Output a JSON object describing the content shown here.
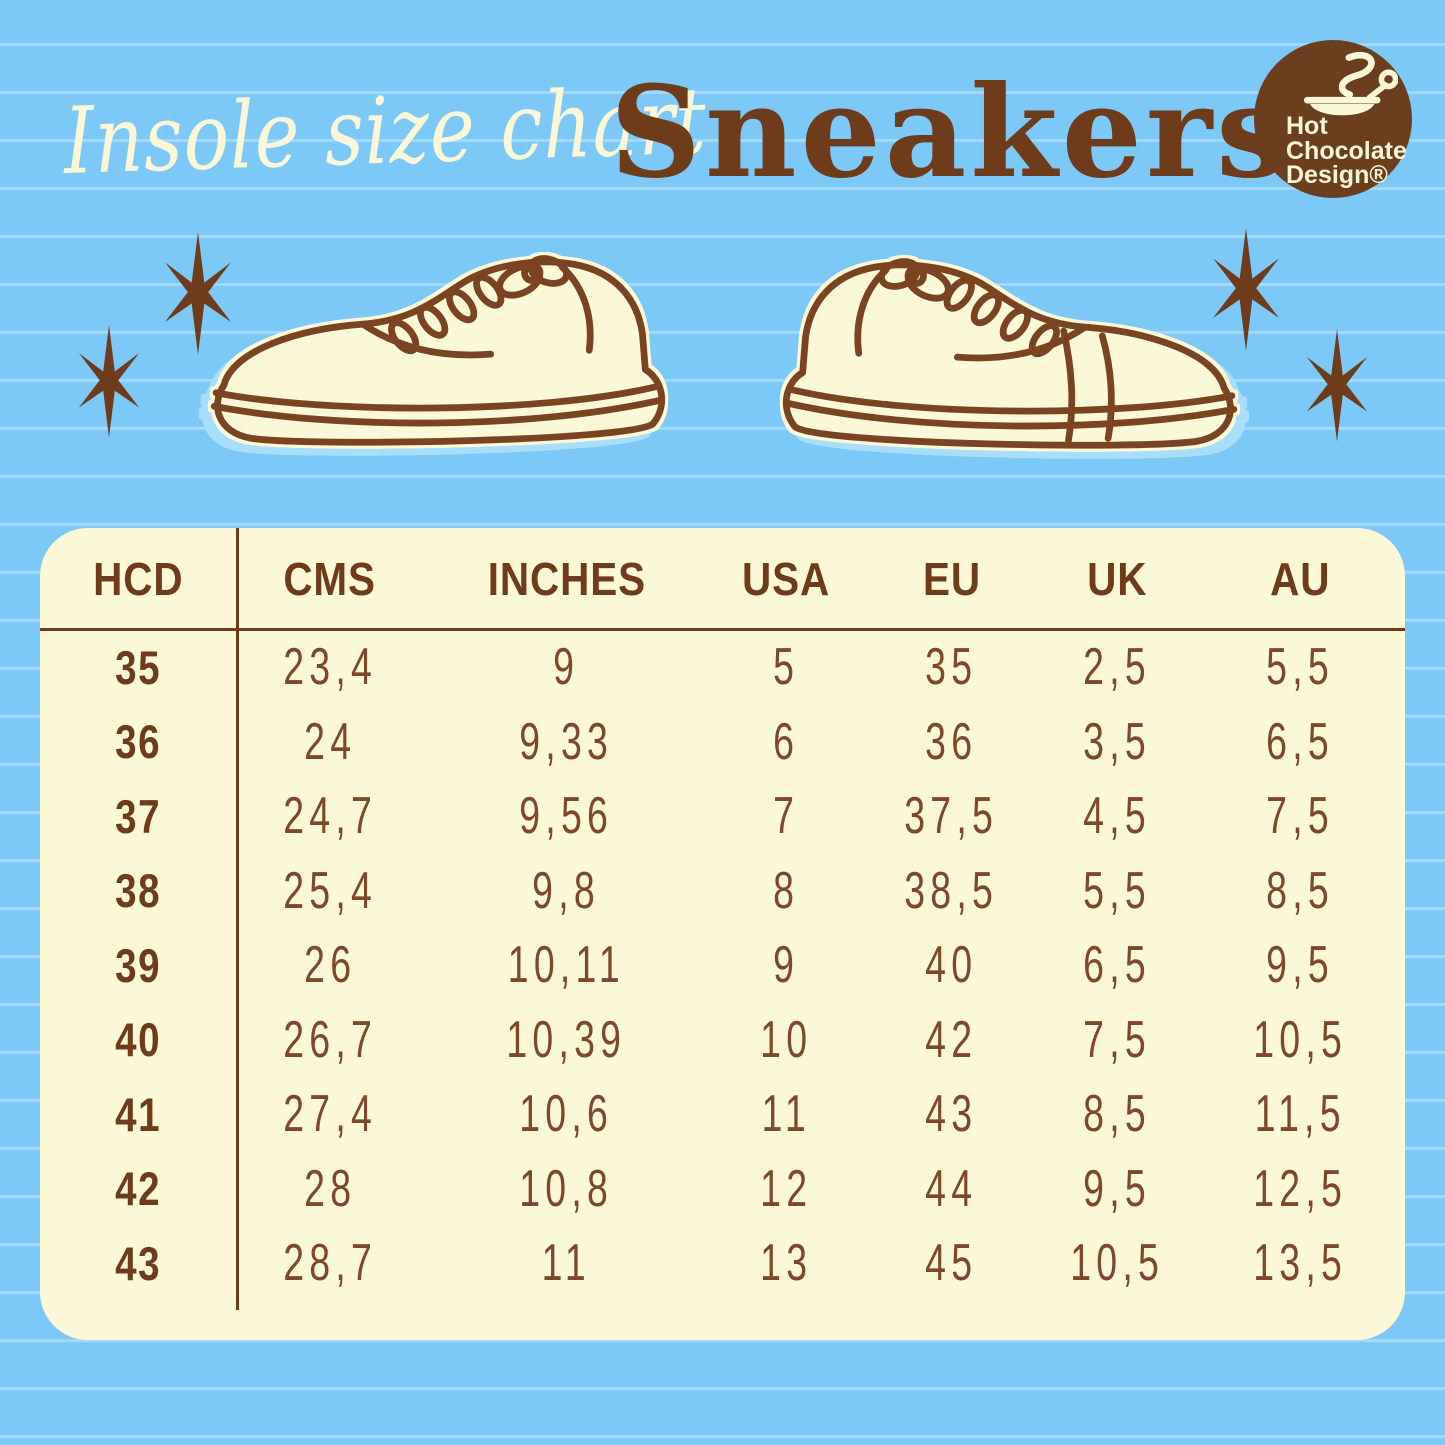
{
  "header": {
    "subtitle_script": "Insole size chart",
    "title": "Sneakers",
    "logo": {
      "line1": "Hot",
      "line2": "Chocolate",
      "line3": "Design®",
      "icon": "coffee-cup-icon",
      "bg_color": "#6b3e1e",
      "text_color": "#faf7d8"
    }
  },
  "decor": {
    "stars": 4,
    "illustrations": [
      "left-sneaker",
      "right-sneaker"
    ]
  },
  "colors": {
    "background_blue": "#7cc8f7",
    "ruled_line_blue": "#a9dff9",
    "cream": "#fbf8d8",
    "brown_dark": "#6e3c1b",
    "brown_data": "#7f482a",
    "shadow_blue": "#a9defb"
  },
  "chart_data": {
    "type": "table",
    "title": "Insole size chart — Sneakers",
    "columns": [
      "HCD",
      "CMS",
      "INCHES",
      "USA",
      "EU",
      "UK",
      "AU"
    ],
    "rows": [
      [
        "35",
        "23,4",
        "9",
        "5",
        "35",
        "2,5",
        "5,5"
      ],
      [
        "36",
        "24",
        "9,33",
        "6",
        "36",
        "3,5",
        "6,5"
      ],
      [
        "37",
        "24,7",
        "9,56",
        "7",
        "37,5",
        "4,5",
        "7,5"
      ],
      [
        "38",
        "25,4",
        "9,8",
        "8",
        "38,5",
        "5,5",
        "8,5"
      ],
      [
        "39",
        "26",
        "10,11",
        "9",
        "40",
        "6,5",
        "9,5"
      ],
      [
        "40",
        "26,7",
        "10,39",
        "10",
        "42",
        "7,5",
        "10,5"
      ],
      [
        "41",
        "27,4",
        "10,6",
        "11",
        "43",
        "8,5",
        "11,5"
      ],
      [
        "42",
        "28",
        "10,8",
        "12",
        "44",
        "9,5",
        "12,5"
      ],
      [
        "43",
        "28,7",
        "11",
        "13",
        "45",
        "10,5",
        "13,5"
      ]
    ]
  }
}
